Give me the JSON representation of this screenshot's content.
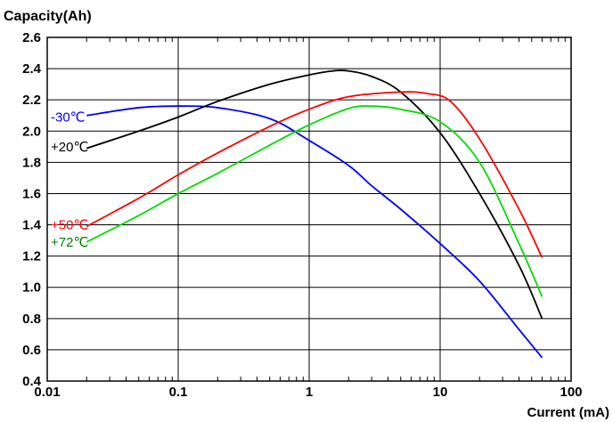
{
  "chart_data": {
    "type": "line",
    "title": "",
    "ylabel": "Capacity(Ah)",
    "xlabel": "Current (mA)",
    "x_scale": "log",
    "xlim": [
      0.01,
      100
    ],
    "ylim": [
      0.4,
      2.6
    ],
    "x_ticks": [
      "0.01",
      "0.1",
      "1",
      "10",
      "100"
    ],
    "y_ticks": [
      "0.4",
      "0.6",
      "0.8",
      "1.0",
      "1.2",
      "1.4",
      "1.6",
      "1.8",
      "2.0",
      "2.2",
      "2.4",
      "2.6"
    ],
    "grid": true,
    "series": [
      {
        "name": "-30℃",
        "color": "#0000ff",
        "points": [
          [
            0.02,
            2.1
          ],
          [
            0.05,
            2.15
          ],
          [
            0.1,
            2.16
          ],
          [
            0.2,
            2.15
          ],
          [
            0.5,
            2.08
          ],
          [
            1,
            1.94
          ],
          [
            2,
            1.78
          ],
          [
            3,
            1.65
          ],
          [
            5,
            1.5
          ],
          [
            10,
            1.28
          ],
          [
            20,
            1.04
          ],
          [
            40,
            0.73
          ],
          [
            60,
            0.55
          ]
        ]
      },
      {
        "name": "+20℃",
        "color": "#000000",
        "points": [
          [
            0.02,
            1.89
          ],
          [
            0.05,
            2.0
          ],
          [
            0.1,
            2.09
          ],
          [
            0.2,
            2.19
          ],
          [
            0.5,
            2.3
          ],
          [
            1,
            2.36
          ],
          [
            1.5,
            2.385
          ],
          [
            2,
            2.385
          ],
          [
            3,
            2.35
          ],
          [
            5,
            2.25
          ],
          [
            10,
            1.99
          ],
          [
            20,
            1.6
          ],
          [
            40,
            1.14
          ],
          [
            60,
            0.8
          ]
        ]
      },
      {
        "name": "+50℃",
        "color": "#ff0000",
        "points": [
          [
            0.02,
            1.39
          ],
          [
            0.05,
            1.57
          ],
          [
            0.1,
            1.72
          ],
          [
            0.2,
            1.86
          ],
          [
            0.5,
            2.03
          ],
          [
            1,
            2.14
          ],
          [
            2,
            2.22
          ],
          [
            5,
            2.25
          ],
          [
            8,
            2.24
          ],
          [
            12,
            2.19
          ],
          [
            20,
            1.95
          ],
          [
            40,
            1.5
          ],
          [
            60,
            1.19
          ]
        ]
      },
      {
        "name": "+72℃",
        "color": "#00dd00",
        "points": [
          [
            0.02,
            1.29
          ],
          [
            0.05,
            1.46
          ],
          [
            0.1,
            1.6
          ],
          [
            0.2,
            1.73
          ],
          [
            0.5,
            1.91
          ],
          [
            1,
            2.04
          ],
          [
            2,
            2.145
          ],
          [
            3,
            2.16
          ],
          [
            5,
            2.14
          ],
          [
            10,
            2.06
          ],
          [
            20,
            1.8
          ],
          [
            40,
            1.28
          ],
          [
            60,
            0.94
          ]
        ]
      }
    ],
    "labels": [
      {
        "text": "-30℃",
        "color": "#0000ff",
        "x": 0.01,
        "y": 2.09
      },
      {
        "text": "+20℃",
        "color": "#000000",
        "x": 0.01,
        "y": 1.9
      },
      {
        "text": "+50℃",
        "color": "#ff0000",
        "x": 0.01,
        "y": 1.4
      },
      {
        "text": "+72℃",
        "color": "#008000",
        "x": 0.01,
        "y": 1.29
      }
    ]
  }
}
